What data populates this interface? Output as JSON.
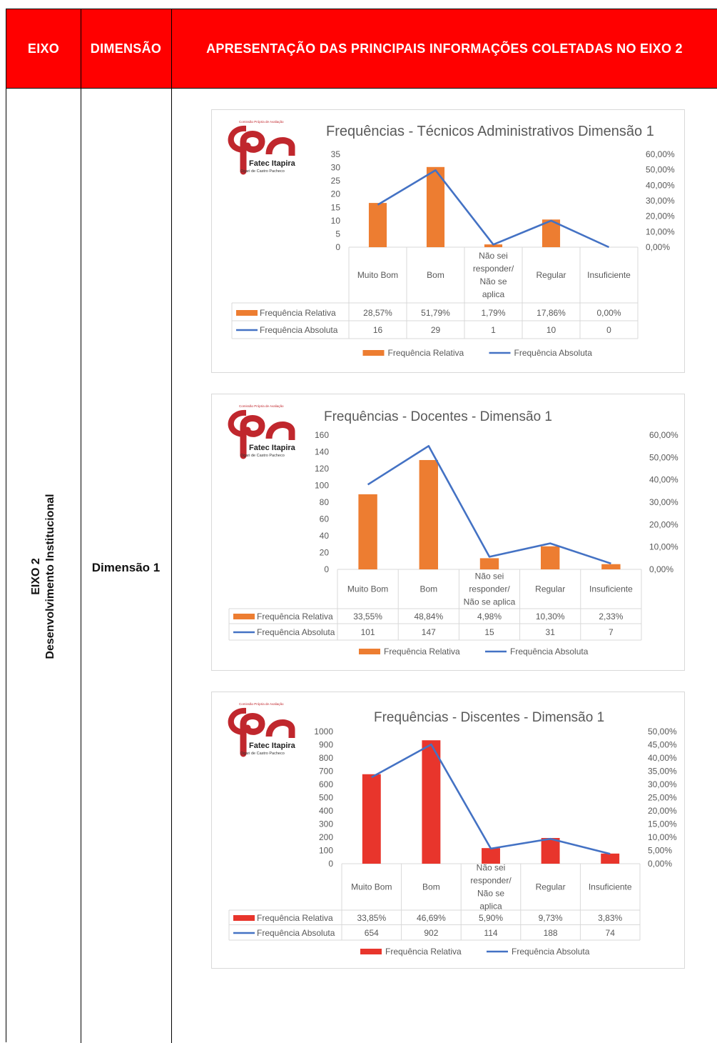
{
  "header": {
    "col1": "EIXO",
    "col2": "DIMENSÃO",
    "col3": "APRESENTAÇÃO DAS PRINCIPAIS INFORMAÇÕES COLETADAS NO EIXO 2"
  },
  "eixo": {
    "line1": "EIXO 2",
    "line2": "Desenvolvimento Institucional"
  },
  "dimensao": "Dimensão 1",
  "logo": {
    "mark": "CPA",
    "small_text": "Comissão Própria de Avaliação",
    "name": "Fatec Itapira",
    "sub": "Ogari de Castro Pacheco"
  },
  "colors": {
    "header_red": "#ff0000",
    "bar_orange": "#ed7d31",
    "bar_red": "#e8352c",
    "line_blue": "#4472c4",
    "logo_red": "#c0272d"
  },
  "chart_data": [
    {
      "type": "bar+line",
      "title": "Frequências - Técnicos Administrativos Dimensão 1",
      "categories": [
        "Muito Bom",
        "Bom",
        "Não sei responder/ Não se aplica",
        "Regular",
        "Insuficiente"
      ],
      "category_lines": [
        [
          "Muito Bom"
        ],
        [
          "Bom"
        ],
        [
          "Não sei",
          "responder/",
          "Não se",
          "aplica"
        ],
        [
          "Regular"
        ],
        [
          "Insuficiente"
        ]
      ],
      "series": [
        {
          "name": "Frequência Relativa",
          "kind": "bar",
          "axis": "right",
          "values": [
            0.2857,
            0.5179,
            0.0179,
            0.1786,
            0.0
          ],
          "labels": [
            "28,57%",
            "51,79%",
            "1,79%",
            "17,86%",
            "0,00%"
          ]
        },
        {
          "name": "Frequência Absoluta",
          "kind": "line",
          "axis": "left",
          "values": [
            16,
            29,
            1,
            10,
            0
          ],
          "labels": [
            "16",
            "29",
            "1",
            "10",
            "0"
          ]
        }
      ],
      "left_ticks": [
        "0",
        "5",
        "10",
        "15",
        "20",
        "25",
        "30",
        "35"
      ],
      "left_range": [
        0,
        35
      ],
      "right_ticks": [
        "0,00%",
        "10,00%",
        "20,00%",
        "30,00%",
        "40,00%",
        "50,00%",
        "60,00%"
      ],
      "right_range": [
        0,
        0.6
      ],
      "legend": [
        "Frequência Relativa",
        "Frequência Absoluta"
      ],
      "legend_position": "bottom",
      "bar_color": "#ed7d31"
    },
    {
      "type": "bar+line",
      "title": "Frequências - Docentes  - Dimensão 1",
      "categories": [
        "Muito Bom",
        "Bom",
        "Não sei responder/ Não se aplica",
        "Regular",
        "Insuficiente"
      ],
      "category_lines": [
        [
          "Muito Bom"
        ],
        [
          "Bom"
        ],
        [
          "Não sei",
          "responder/",
          "Não se aplica"
        ],
        [
          "Regular"
        ],
        [
          "Insuficiente"
        ]
      ],
      "series": [
        {
          "name": "Frequência Relativa",
          "kind": "bar",
          "axis": "right",
          "values": [
            0.3355,
            0.4884,
            0.0498,
            0.103,
            0.0233
          ],
          "labels": [
            "33,55%",
            "48,84%",
            "4,98%",
            "10,30%",
            "2,33%"
          ]
        },
        {
          "name": "Frequência Absoluta",
          "kind": "line",
          "axis": "left",
          "values": [
            101,
            147,
            15,
            31,
            7
          ],
          "labels": [
            "101",
            "147",
            "15",
            "31",
            "7"
          ]
        }
      ],
      "left_ticks": [
        "0",
        "20",
        "40",
        "60",
        "80",
        "100",
        "120",
        "140",
        "160"
      ],
      "left_range": [
        0,
        160
      ],
      "right_ticks": [
        "0,00%",
        "10,00%",
        "20,00%",
        "30,00%",
        "40,00%",
        "50,00%",
        "60,00%"
      ],
      "right_range": [
        0,
        0.6
      ],
      "legend": [
        "Frequência Relativa",
        "Frequência Absoluta"
      ],
      "legend_position": "bottom",
      "bar_color": "#ed7d31"
    },
    {
      "type": "bar+line",
      "title": "Frequências - Discentes - Dimensão 1",
      "categories": [
        "Muito Bom",
        "Bom",
        "Não sei responder/ Não se aplica",
        "Regular",
        "Insuficiente"
      ],
      "category_lines": [
        [
          "Muito Bom"
        ],
        [
          "Bom"
        ],
        [
          "Não sei",
          "responder/",
          "Não se",
          "aplica"
        ],
        [
          "Regular"
        ],
        [
          "Insuficiente"
        ]
      ],
      "series": [
        {
          "name": "Frequência Relativa",
          "kind": "bar",
          "axis": "right",
          "values": [
            0.3385,
            0.4669,
            0.059,
            0.0973,
            0.0383
          ],
          "labels": [
            "33,85%",
            "46,69%",
            "5,90%",
            "9,73%",
            "3,83%"
          ]
        },
        {
          "name": "Frequência Absoluta",
          "kind": "line",
          "axis": "left",
          "values": [
            654,
            902,
            114,
            188,
            74
          ],
          "labels": [
            "654",
            "902",
            "114",
            "188",
            "74"
          ]
        }
      ],
      "left_ticks": [
        "0",
        "100",
        "200",
        "300",
        "400",
        "500",
        "600",
        "700",
        "800",
        "900",
        "1000"
      ],
      "left_range": [
        0,
        1000
      ],
      "right_ticks": [
        "0,00%",
        "5,00%",
        "10,00%",
        "15,00%",
        "20,00%",
        "25,00%",
        "30,00%",
        "35,00%",
        "40,00%",
        "45,00%",
        "50,00%"
      ],
      "right_range": [
        0,
        0.5
      ],
      "legend": [
        "Frequência Relativa",
        "Frequência Absoluta"
      ],
      "legend_position": "bottom",
      "bar_color": "#e8352c"
    }
  ]
}
